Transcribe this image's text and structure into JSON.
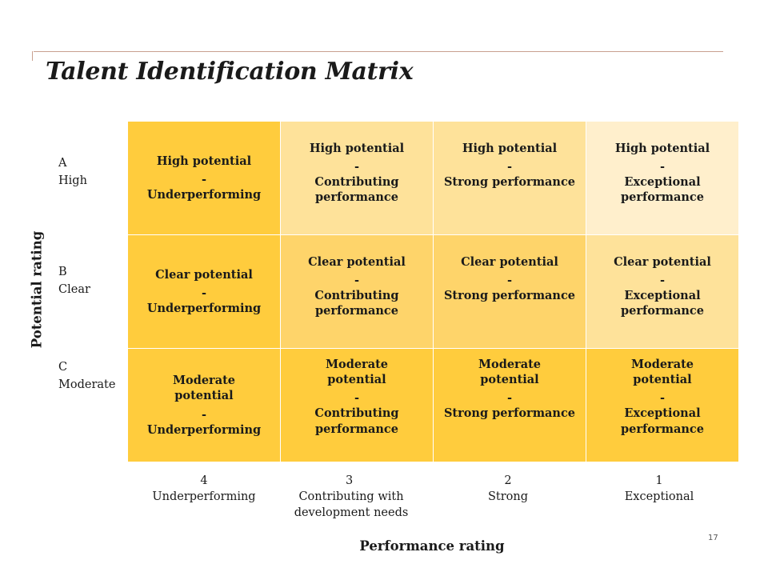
{
  "title": "Talent Identification Matrix",
  "axes": {
    "y_label": "Potential rating",
    "x_label": "Performance rating"
  },
  "rows": [
    {
      "code": "A",
      "name": "High"
    },
    {
      "code": "B",
      "name": "Clear"
    },
    {
      "code": "C",
      "name": "Moderate"
    }
  ],
  "columns": [
    {
      "code": "4",
      "name": "Underperforming"
    },
    {
      "code": "3",
      "name": "Contributing with development needs"
    },
    {
      "code": "2",
      "name": "Strong"
    },
    {
      "code": "1",
      "name": "Exceptional"
    }
  ],
  "cells": [
    [
      {
        "potential": "High potential",
        "dash": "-",
        "performance": "Underperforming"
      },
      {
        "potential": "High potential",
        "dash": "-",
        "performance": "Contributing performance"
      },
      {
        "potential": "High potential",
        "dash": "-",
        "performance": "Strong performance"
      },
      {
        "potential": "High potential",
        "dash": "-",
        "performance": "Exceptional performance"
      }
    ],
    [
      {
        "potential": "Clear potential",
        "dash": "-",
        "performance": "Underperforming"
      },
      {
        "potential": "Clear potential",
        "dash": "-",
        "performance": "Contributing performance"
      },
      {
        "potential": "Clear potential",
        "dash": "-",
        "performance": "Strong performance"
      },
      {
        "potential": "Clear potential",
        "dash": "-",
        "performance": "Exceptional performance"
      }
    ],
    [
      {
        "potential": "Moderate potential",
        "dash": "-",
        "performance": "Underperforming"
      },
      {
        "potential": "Moderate potential",
        "dash": "-",
        "performance": "Contributing performance"
      },
      {
        "potential": "Moderate potential",
        "dash": "-",
        "performance": "Strong performance"
      },
      {
        "potential": "Moderate potential",
        "dash": "-",
        "performance": "Exceptional performance"
      }
    ]
  ],
  "colors": {
    "darkest": "#ffcc3d",
    "dark": "#fed46a",
    "medium": "#fee29a",
    "light": "#ffefcc"
  },
  "page_number": "17"
}
